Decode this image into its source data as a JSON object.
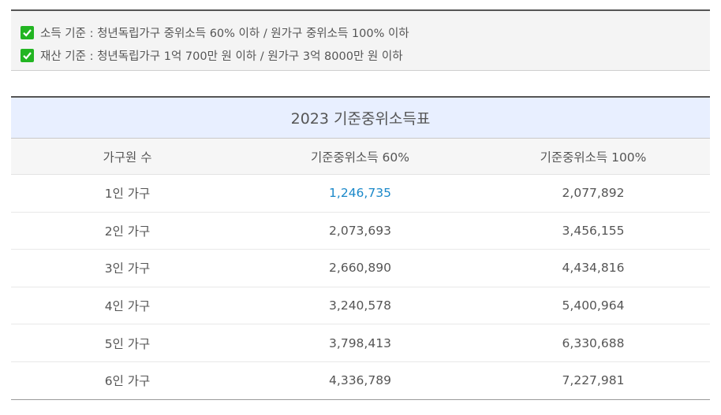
{
  "criteria": [
    {
      "text": "소득 기준 : 청년독립가구 중위소득 60% 이하 / 원가구 중위소득 100% 이하"
    },
    {
      "text": "재산 기준 : 청년독립가구 1억 700만 원 이하 / 원가구 3억 8000만 원 이하"
    }
  ],
  "table": {
    "title": "2023 기준중위소득표",
    "headers": [
      "가구원 수",
      "기준중위소득 60%",
      "기준중위소득 100%"
    ],
    "rows": [
      [
        "1인 가구",
        "1,246,735",
        "2,077,892"
      ],
      [
        "2인 가구",
        "2,073,693",
        "3,456,155"
      ],
      [
        "3인 가구",
        "2,660,890",
        "4,434,816"
      ],
      [
        "4인 가구",
        "3,240,578",
        "5,400,964"
      ],
      [
        "5인 가구",
        "3,798,413",
        "6,330,688"
      ],
      [
        "6인 가구",
        "4,336,789",
        "7,227,981"
      ]
    ]
  },
  "colors": {
    "check": "#22b522",
    "title_bg": "#e8efff",
    "link": "#1a88c9"
  }
}
